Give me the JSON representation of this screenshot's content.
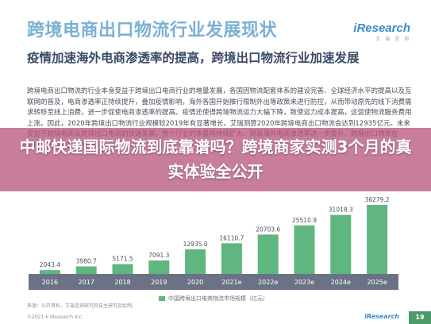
{
  "header": {
    "title": "跨境电商出口物流行业发展现状",
    "logo_main": "iResearch",
    "logo_sub": "艾 瑞 咨 询"
  },
  "section": {
    "subheading": "疫情加速海外电商渗透率的提高，跨境出口物流行业加速发展",
    "body": "跨境电商出口物流的行业本身受益于跨境出口电商行业的增量发展，各国因物流配套体系的建设完善、全球经济水平的提高以及互联网的普及，电商渗透率正持续提升，叠加疫情影响，海外各国开始推行限制外出等政策来进行防控，从而带动原先的线下消费需求转移至线上消费，进一步促使电商渗透率的提高。疫情还使得跨境物流运力大幅下降，致使运力成本提高，这促使物流服务费用上涨。因此，2020年跨境出口物流行业规模较2019年有显著增长，艾瑞测算2020年跨境电商出口物流会达到12935亿元。未来受益于跨境电商及跨境出口电商的快速发展，整个行业的体量将持续扩大。随着海外电商渗透率进一步提升，跨境出口物流在2025年将超过3万亿元。"
  },
  "overlay": {
    "headline": "中邮快递国际物流到底靠谱吗？跨境商家实测3个月的真实体验全公开"
  },
  "chart_data": {
    "type": "bar",
    "categories": [
      "2016",
      "2017",
      "2018",
      "2019",
      "2020",
      "2021e",
      "2022e",
      "2023e",
      "2024e",
      "2025e"
    ],
    "values": [
      2043.4,
      3980.7,
      5171.5,
      7091.3,
      12935.0,
      16110.7,
      20703.6,
      25510.9,
      31018.3,
      36279.2
    ],
    "value_labels": [
      "2043.4",
      "3980.7",
      "5171.5",
      "7091.3",
      "12935.0",
      "16110.7",
      "20703.6",
      "25510.9",
      "31018.3",
      "36279.2"
    ],
    "series": [
      {
        "name": "中国跨境出口电商物流市场规模（亿元）",
        "values": [
          2043.4,
          3980.7,
          5171.5,
          7091.3,
          12935.0,
          16110.7,
          20703.6,
          25510.9,
          31018.3,
          36279.2
        ]
      }
    ],
    "ylim": [
      0,
      40000
    ],
    "bar_color": "#5fb67e",
    "legend_position": "bottom"
  },
  "footer": {
    "source": "来源：公开资料，艾瑞咨询研究院自主研究及绘制。",
    "copyright": "©2021.6 iResearch Inc.",
    "logo": "iResearch",
    "page": "19"
  }
}
